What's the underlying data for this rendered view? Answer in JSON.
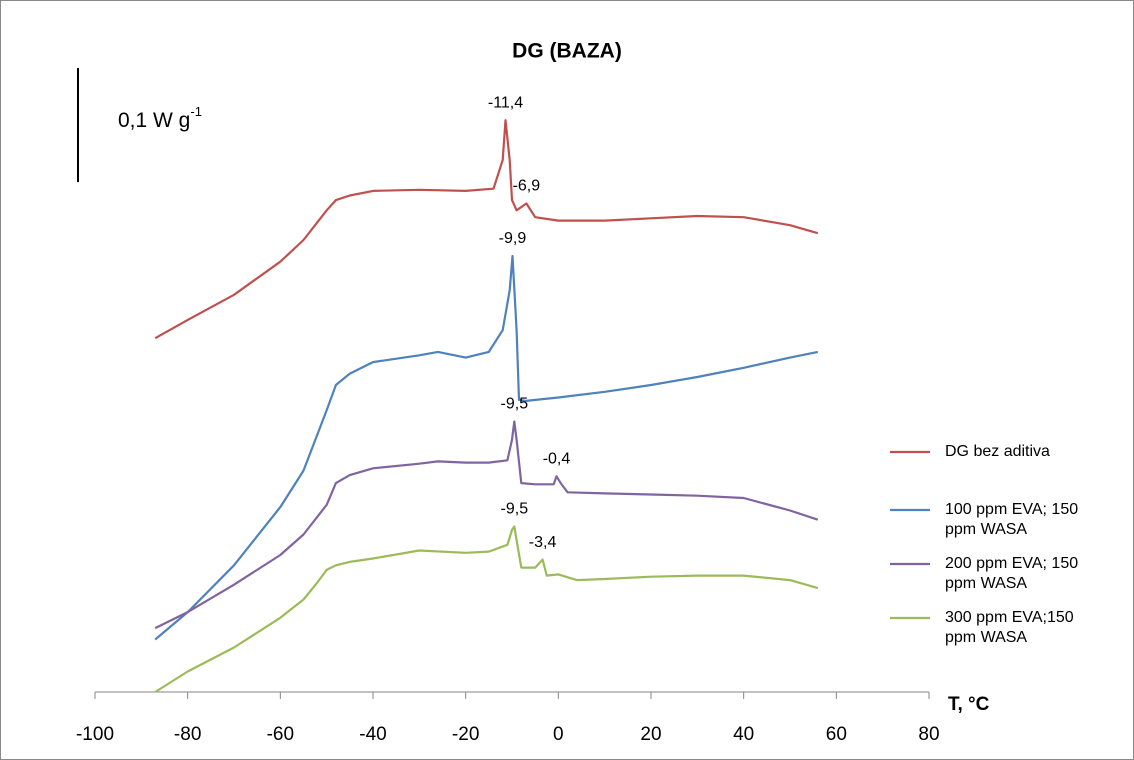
{
  "chart_data": {
    "type": "line",
    "title": "DG (BAZA)",
    "x_label": "T, °C",
    "xlim": [
      -100,
      80
    ],
    "xticks": [
      -100,
      -80,
      -60,
      -40,
      -20,
      0,
      20,
      40,
      60,
      80
    ],
    "ylim": [
      0,
      0.58
    ],
    "scale_bar": {
      "value": 0.1,
      "label": "0,1 W g",
      "unit_sup": "-1"
    },
    "legend": "right",
    "series": [
      {
        "name": "DG bez aditiva",
        "color": "#c0504d",
        "x": [
          -87,
          -80,
          -70,
          -60,
          -55,
          -50,
          -48,
          -45,
          -40,
          -30,
          -20,
          -14,
          -12,
          -11.4,
          -10.5,
          -10,
          -9,
          -6.9,
          -5,
          0,
          10,
          20,
          30,
          40,
          50,
          56
        ],
        "x_labels": [
          null,
          null,
          null,
          null,
          null,
          null,
          null,
          null,
          null,
          null,
          null,
          null,
          null,
          "-11,4",
          null,
          null,
          null,
          "-6,9",
          null,
          null,
          null,
          null,
          null,
          null,
          null,
          null
        ],
        "values": [
          0.31,
          0.326,
          0.348,
          0.377,
          0.396,
          0.422,
          0.431,
          0.435,
          0.439,
          0.44,
          0.439,
          0.441,
          0.466,
          0.501,
          0.466,
          0.431,
          0.422,
          0.428,
          0.416,
          0.413,
          0.413,
          0.415,
          0.417,
          0.416,
          0.409,
          0.402
        ]
      },
      {
        "name": "100 ppm EVA; 150 ppm WASA",
        "color": "#4f81bd",
        "x": [
          -87,
          -80,
          -70,
          -60,
          -55,
          -50,
          -48,
          -45,
          -40,
          -30,
          -26,
          -20,
          -15,
          -12,
          -10.5,
          -9.9,
          -9,
          -8.5,
          -7,
          0,
          10,
          20,
          30,
          40,
          50,
          56
        ],
        "x_labels": [
          null,
          null,
          null,
          null,
          null,
          null,
          null,
          null,
          null,
          null,
          null,
          null,
          null,
          null,
          null,
          "-9,9",
          null,
          null,
          null,
          null,
          null,
          null,
          null,
          null,
          null,
          null
        ],
        "values": [
          0.046,
          0.07,
          0.111,
          0.162,
          0.194,
          0.247,
          0.269,
          0.279,
          0.289,
          0.295,
          0.298,
          0.293,
          0.298,
          0.317,
          0.352,
          0.382,
          0.317,
          0.256,
          0.255,
          0.258,
          0.263,
          0.269,
          0.276,
          0.284,
          0.293,
          0.298
        ]
      },
      {
        "name": "200 ppm EVA; 150 ppm WASA",
        "color": "#8064a2",
        "x": [
          -87,
          -80,
          -70,
          -60,
          -55,
          -50,
          -48,
          -45,
          -40,
          -30,
          -26,
          -20,
          -15,
          -11,
          -10,
          -9.5,
          -9,
          -8,
          -5,
          -1,
          -0.4,
          0.5,
          2,
          10,
          20,
          30,
          40,
          50,
          56
        ],
        "x_labels": [
          null,
          null,
          null,
          null,
          null,
          null,
          null,
          null,
          null,
          null,
          null,
          null,
          null,
          null,
          null,
          "-9,5",
          null,
          null,
          null,
          null,
          "-0,4",
          null,
          null,
          null,
          null,
          null,
          null,
          null,
          null
        ],
        "values": [
          0.056,
          0.07,
          0.094,
          0.12,
          0.138,
          0.164,
          0.183,
          0.19,
          0.196,
          0.2,
          0.202,
          0.201,
          0.201,
          0.203,
          0.221,
          0.237,
          0.221,
          0.183,
          0.182,
          0.182,
          0.189,
          0.183,
          0.175,
          0.174,
          0.173,
          0.172,
          0.17,
          0.159,
          0.151
        ]
      },
      {
        "name": "300 ppm EVA;150 ppm WASA",
        "color": "#9bbb59",
        "x": [
          -87,
          -80,
          -70,
          -60,
          -55,
          -52,
          -50,
          -48,
          -45,
          -40,
          -30,
          -20,
          -15,
          -11,
          -10,
          -9.5,
          -9,
          -8,
          -5,
          -3.4,
          -2.5,
          0,
          4,
          10,
          20,
          30,
          40,
          50,
          56
        ],
        "x_labels": [
          null,
          null,
          null,
          null,
          null,
          null,
          null,
          null,
          null,
          null,
          null,
          null,
          null,
          null,
          null,
          "-9,5",
          null,
          null,
          null,
          "-3,4",
          null,
          null,
          null,
          null,
          null,
          null,
          null,
          null,
          null
        ],
        "values": [
          0.0,
          0.018,
          0.039,
          0.065,
          0.081,
          0.096,
          0.107,
          0.111,
          0.114,
          0.117,
          0.124,
          0.122,
          0.123,
          0.129,
          0.142,
          0.145,
          0.133,
          0.109,
          0.109,
          0.116,
          0.102,
          0.103,
          0.098,
          0.099,
          0.101,
          0.102,
          0.102,
          0.098,
          0.091
        ]
      }
    ]
  }
}
